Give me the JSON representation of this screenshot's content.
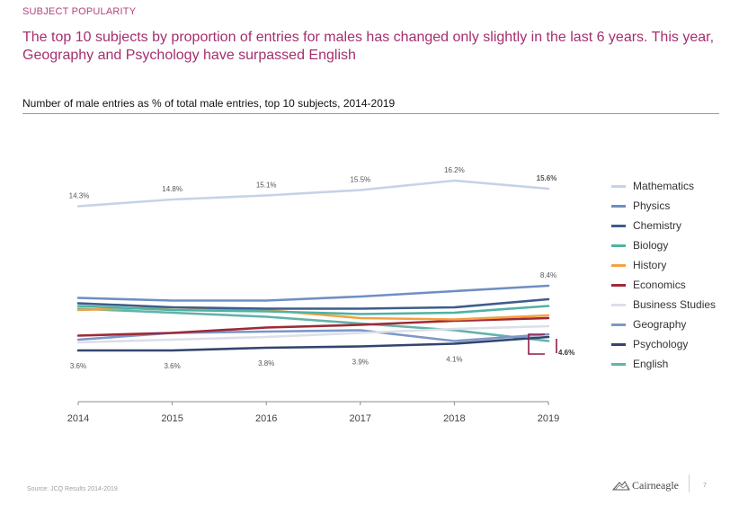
{
  "header": {
    "section_label": "SUBJECT POPULARITY",
    "headline": "The top 10 subjects by proportion of entries for males has changed only slightly in the last 6 years. This year, Geography and Psychology have surpassed English"
  },
  "chart_title": "Number of male entries as % of total male entries, top 10 subjects, 2014-2019",
  "chart_data": {
    "type": "line",
    "x": [
      "2014",
      "2015",
      "2016",
      "2017",
      "2018",
      "2019"
    ],
    "ylim": [
      0,
      18
    ],
    "grid": false,
    "legend_position": "right",
    "series": [
      {
        "name": "Mathematics",
        "color": "#c5d3e6",
        "values": [
          14.3,
          14.8,
          15.1,
          15.5,
          16.2,
          15.6
        ]
      },
      {
        "name": "Physics",
        "color": "#6f8fc3",
        "values": [
          7.5,
          7.3,
          7.3,
          7.6,
          8.0,
          8.4
        ]
      },
      {
        "name": "Chemistry",
        "color": "#3f5c8a",
        "values": [
          7.1,
          6.8,
          6.7,
          6.7,
          6.8,
          7.4
        ]
      },
      {
        "name": "Biology",
        "color": "#4fb3a3",
        "values": [
          6.9,
          6.6,
          6.5,
          6.3,
          6.4,
          6.9
        ]
      },
      {
        "name": "History",
        "color": "#f4a043",
        "values": [
          6.6,
          6.8,
          6.6,
          6.0,
          5.9,
          6.2
        ]
      },
      {
        "name": "Economics",
        "color": "#9e2a36",
        "values": [
          4.7,
          4.9,
          5.3,
          5.5,
          5.8,
          6.0
        ]
      },
      {
        "name": "Business Studies",
        "color": "#dcdfe9",
        "values": [
          4.2,
          4.4,
          4.6,
          4.9,
          5.2,
          5.4
        ]
      },
      {
        "name": "Geography",
        "color": "#7c97c9",
        "values": [
          4.4,
          4.9,
          5.0,
          5.1,
          4.3,
          4.8
        ]
      },
      {
        "name": "Psychology",
        "color": "#32456d",
        "values": [
          3.6,
          3.6,
          3.8,
          3.9,
          4.1,
          4.6
        ]
      },
      {
        "name": "English",
        "color": "#62b3a8",
        "values": [
          6.7,
          6.4,
          6.1,
          5.6,
          5.1,
          4.3
        ]
      }
    ],
    "annotations": {
      "mathematics": [
        "14.3%",
        "14.8%",
        "15.1%",
        "15.5%",
        "16.2%",
        "15.6%"
      ],
      "physics_2019": "8.4%",
      "psychology": [
        "3.6%",
        "3.6%",
        "3.8%",
        "3.9%",
        "4.1%"
      ],
      "bracket_2019": "4.6%"
    },
    "highlight_color": "#8c1d4b"
  },
  "footer": {
    "source": "Source: JCQ Results 2014-2019",
    "brand_name": "Cairneagle",
    "page_number": "7"
  }
}
